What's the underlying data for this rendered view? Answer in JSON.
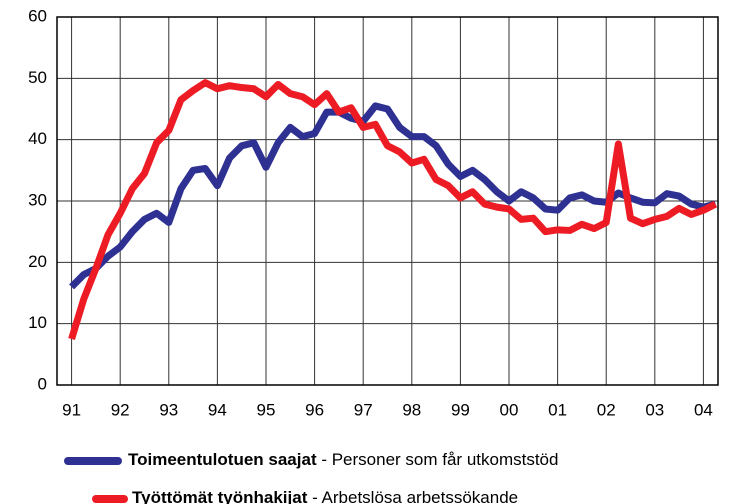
{
  "chart_data": {
    "type": "line",
    "x": [
      1991,
      1991.25,
      1991.5,
      1991.75,
      1992,
      1992.25,
      1992.5,
      1992.75,
      1993,
      1993.25,
      1993.5,
      1993.75,
      1994,
      1994.25,
      1994.5,
      1994.75,
      1995,
      1995.25,
      1995.5,
      1995.75,
      1996,
      1996.25,
      1996.5,
      1996.75,
      1997,
      1997.25,
      1997.5,
      1997.75,
      1998,
      1998.25,
      1998.5,
      1998.75,
      1999,
      1999.25,
      1999.5,
      1999.75,
      2000,
      2000.25,
      2000.5,
      2000.75,
      2001,
      2001.25,
      2001.5,
      2001.75,
      2002,
      2002.25,
      2002.5,
      2002.75,
      2003,
      2003.25,
      2003.5,
      2003.75,
      2004,
      2004.25
    ],
    "series": [
      {
        "name": "Toimeentulotuen saajat",
        "description": " - Personer som får utkomststöd",
        "color": "#2e3192",
        "values": [
          16,
          18,
          19,
          21,
          22.5,
          25,
          27,
          28,
          26.5,
          32,
          35,
          35.3,
          32.5,
          37,
          39,
          39.5,
          35.5,
          39.5,
          42,
          40.5,
          41,
          44.5,
          44.5,
          43.5,
          43,
          45.5,
          45,
          42,
          40.5,
          40.5,
          39,
          36,
          34,
          35,
          33.5,
          31.5,
          30,
          31.5,
          30.5,
          28.7,
          28.5,
          30.5,
          31,
          30,
          29.8,
          31.3,
          30.5,
          29.8,
          29.7,
          31.2,
          30.8,
          29.5,
          29,
          29.5
        ]
      },
      {
        "name": "Työttömät työnhakijat",
        "description": " - Arbetslösa arbetssökande",
        "color": "#ed1c24",
        "values": [
          7.5,
          14,
          19,
          24.5,
          28,
          32,
          34.5,
          39.5,
          41.5,
          46.5,
          48,
          49.3,
          48.3,
          48.8,
          48.5,
          48.3,
          47,
          49,
          47.5,
          47,
          45.7,
          47.5,
          44.5,
          45.2,
          42,
          42.5,
          39,
          38,
          36.2,
          36.8,
          33.5,
          32.5,
          30.5,
          31.5,
          29.5,
          29,
          28.7,
          27,
          27.2,
          25,
          25.3,
          25.2,
          26.2,
          25.5,
          26.5,
          39.3,
          27.2,
          26.3,
          27,
          27.5,
          28.8,
          27.8,
          28.5,
          29.5
        ]
      }
    ],
    "xlim": [
      1990.7,
      2004.3
    ],
    "xticks": [
      {
        "value": 1991,
        "label": "91"
      },
      {
        "value": 1992,
        "label": "92"
      },
      {
        "value": 1993,
        "label": "93"
      },
      {
        "value": 1994,
        "label": "94"
      },
      {
        "value": 1995,
        "label": "95"
      },
      {
        "value": 1996,
        "label": "96"
      },
      {
        "value": 1997,
        "label": "97"
      },
      {
        "value": 1998,
        "label": "98"
      },
      {
        "value": 1999,
        "label": "99"
      },
      {
        "value": 2000,
        "label": "00"
      },
      {
        "value": 2001,
        "label": "01"
      },
      {
        "value": 2002,
        "label": "02"
      },
      {
        "value": 2003,
        "label": "03"
      },
      {
        "value": 2004,
        "label": "04"
      }
    ],
    "ylim": [
      0,
      60
    ],
    "yticks": [
      0,
      10,
      20,
      30,
      40,
      50,
      60
    ],
    "grid": true
  }
}
